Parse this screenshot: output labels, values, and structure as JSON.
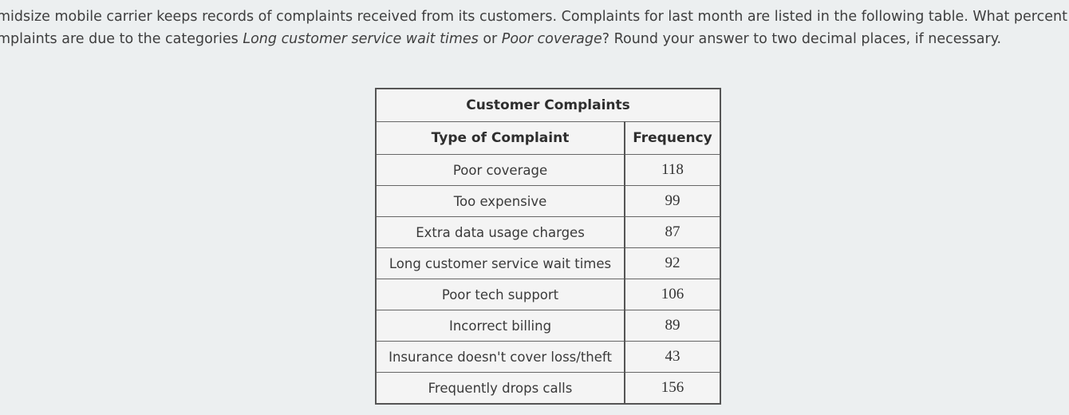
{
  "question": {
    "line1": "midsize mobile carrier keeps records of complaints received from its customers. Complaints for last month are listed in the following table. What percent of th",
    "line2_prefix": "mplaints are due to the categories ",
    "line2_cat1": "Long customer service wait times",
    "line2_or": " or ",
    "line2_cat2": "Poor coverage",
    "line2_suffix": "? Round your answer to two decimal places, if necessary."
  },
  "table": {
    "caption": "Customer Complaints",
    "headers": {
      "type": "Type of Complaint",
      "frequency": "Frequency"
    },
    "rows": [
      {
        "type": "Poor coverage",
        "frequency": "118"
      },
      {
        "type": "Too expensive",
        "frequency": "99"
      },
      {
        "type": "Extra data usage charges",
        "frequency": "87"
      },
      {
        "type": "Long customer service wait times",
        "frequency": "92"
      },
      {
        "type": "Poor tech support",
        "frequency": "106"
      },
      {
        "type": "Incorrect billing",
        "frequency": "89"
      },
      {
        "type": "Insurance doesn't cover loss/theft",
        "frequency": "43"
      },
      {
        "type": "Frequently drops calls",
        "frequency": "156"
      }
    ]
  }
}
